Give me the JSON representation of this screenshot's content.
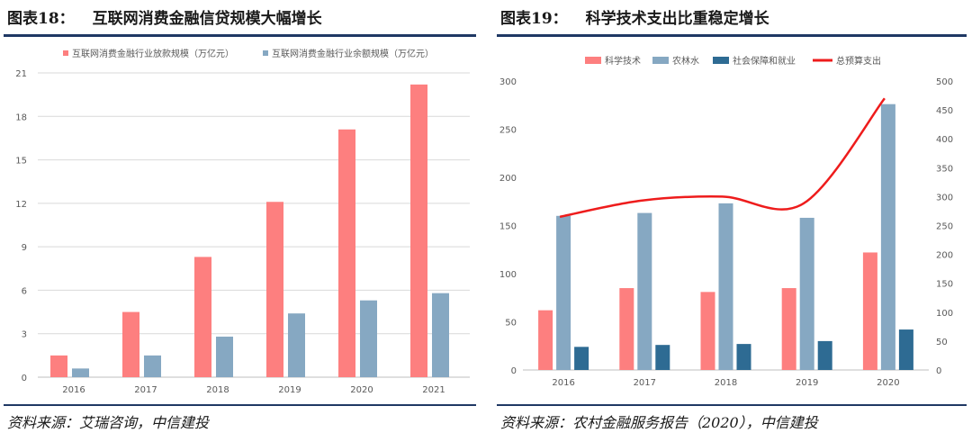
{
  "left": {
    "title_label": "图表18：",
    "title_text": "互联网消费金融信贷规模大幅增长",
    "source": "资料来源：艾瑞咨询，中信建投",
    "chart_data": {
      "type": "bar",
      "categories": [
        "2016",
        "2017",
        "2018",
        "2019",
        "2020",
        "2021"
      ],
      "series": [
        {
          "name": "互联网消费金融行业放款规模（万亿元）",
          "color": "#fd7f7f",
          "values": [
            1.5,
            4.5,
            8.3,
            12.1,
            17.1,
            20.2
          ]
        },
        {
          "name": "互联网消费金融行业余额规模（万亿元）",
          "color": "#86a8c2",
          "values": [
            0.6,
            1.5,
            2.8,
            4.4,
            5.3,
            5.8
          ]
        }
      ],
      "y_ticks": [
        "0",
        "3",
        "6",
        "9",
        "12",
        "15",
        "18",
        "21"
      ],
      "ylim": [
        0,
        21
      ],
      "legend_position": "top",
      "grid": true
    }
  },
  "right": {
    "title_label": "图表19：",
    "title_text": "科学技术支出比重稳定增长",
    "source": "资料来源：农村金融服务报告（2020），中信建投",
    "chart_data": {
      "type": "bar",
      "categories": [
        "2016",
        "2017",
        "2018",
        "2019",
        "2020"
      ],
      "series": [
        {
          "name": "科学技术",
          "color": "#fd7f7f",
          "axis": "left",
          "values": [
            62,
            85,
            81,
            85,
            122
          ]
        },
        {
          "name": "农林水",
          "color": "#86a8c2",
          "axis": "left",
          "values": [
            160,
            163,
            173,
            158,
            276
          ]
        },
        {
          "name": "社会保障和就业",
          "color": "#2e6b93",
          "axis": "left",
          "values": [
            24,
            26,
            27,
            30,
            42
          ]
        },
        {
          "name": "总预算支出",
          "color": "#ee1c1c",
          "axis": "right",
          "type": "line",
          "values": [
            265,
            293,
            300,
            288,
            470
          ]
        }
      ],
      "y_ticks": [
        "0",
        "50",
        "100",
        "150",
        "200",
        "250",
        "300"
      ],
      "ylim": [
        0,
        300
      ],
      "y2_ticks": [
        "0",
        "50",
        "100",
        "150",
        "200",
        "250",
        "300",
        "350",
        "400",
        "450",
        "500"
      ],
      "y2lim": [
        0,
        500
      ],
      "legend_position": "top",
      "grid": false
    }
  }
}
